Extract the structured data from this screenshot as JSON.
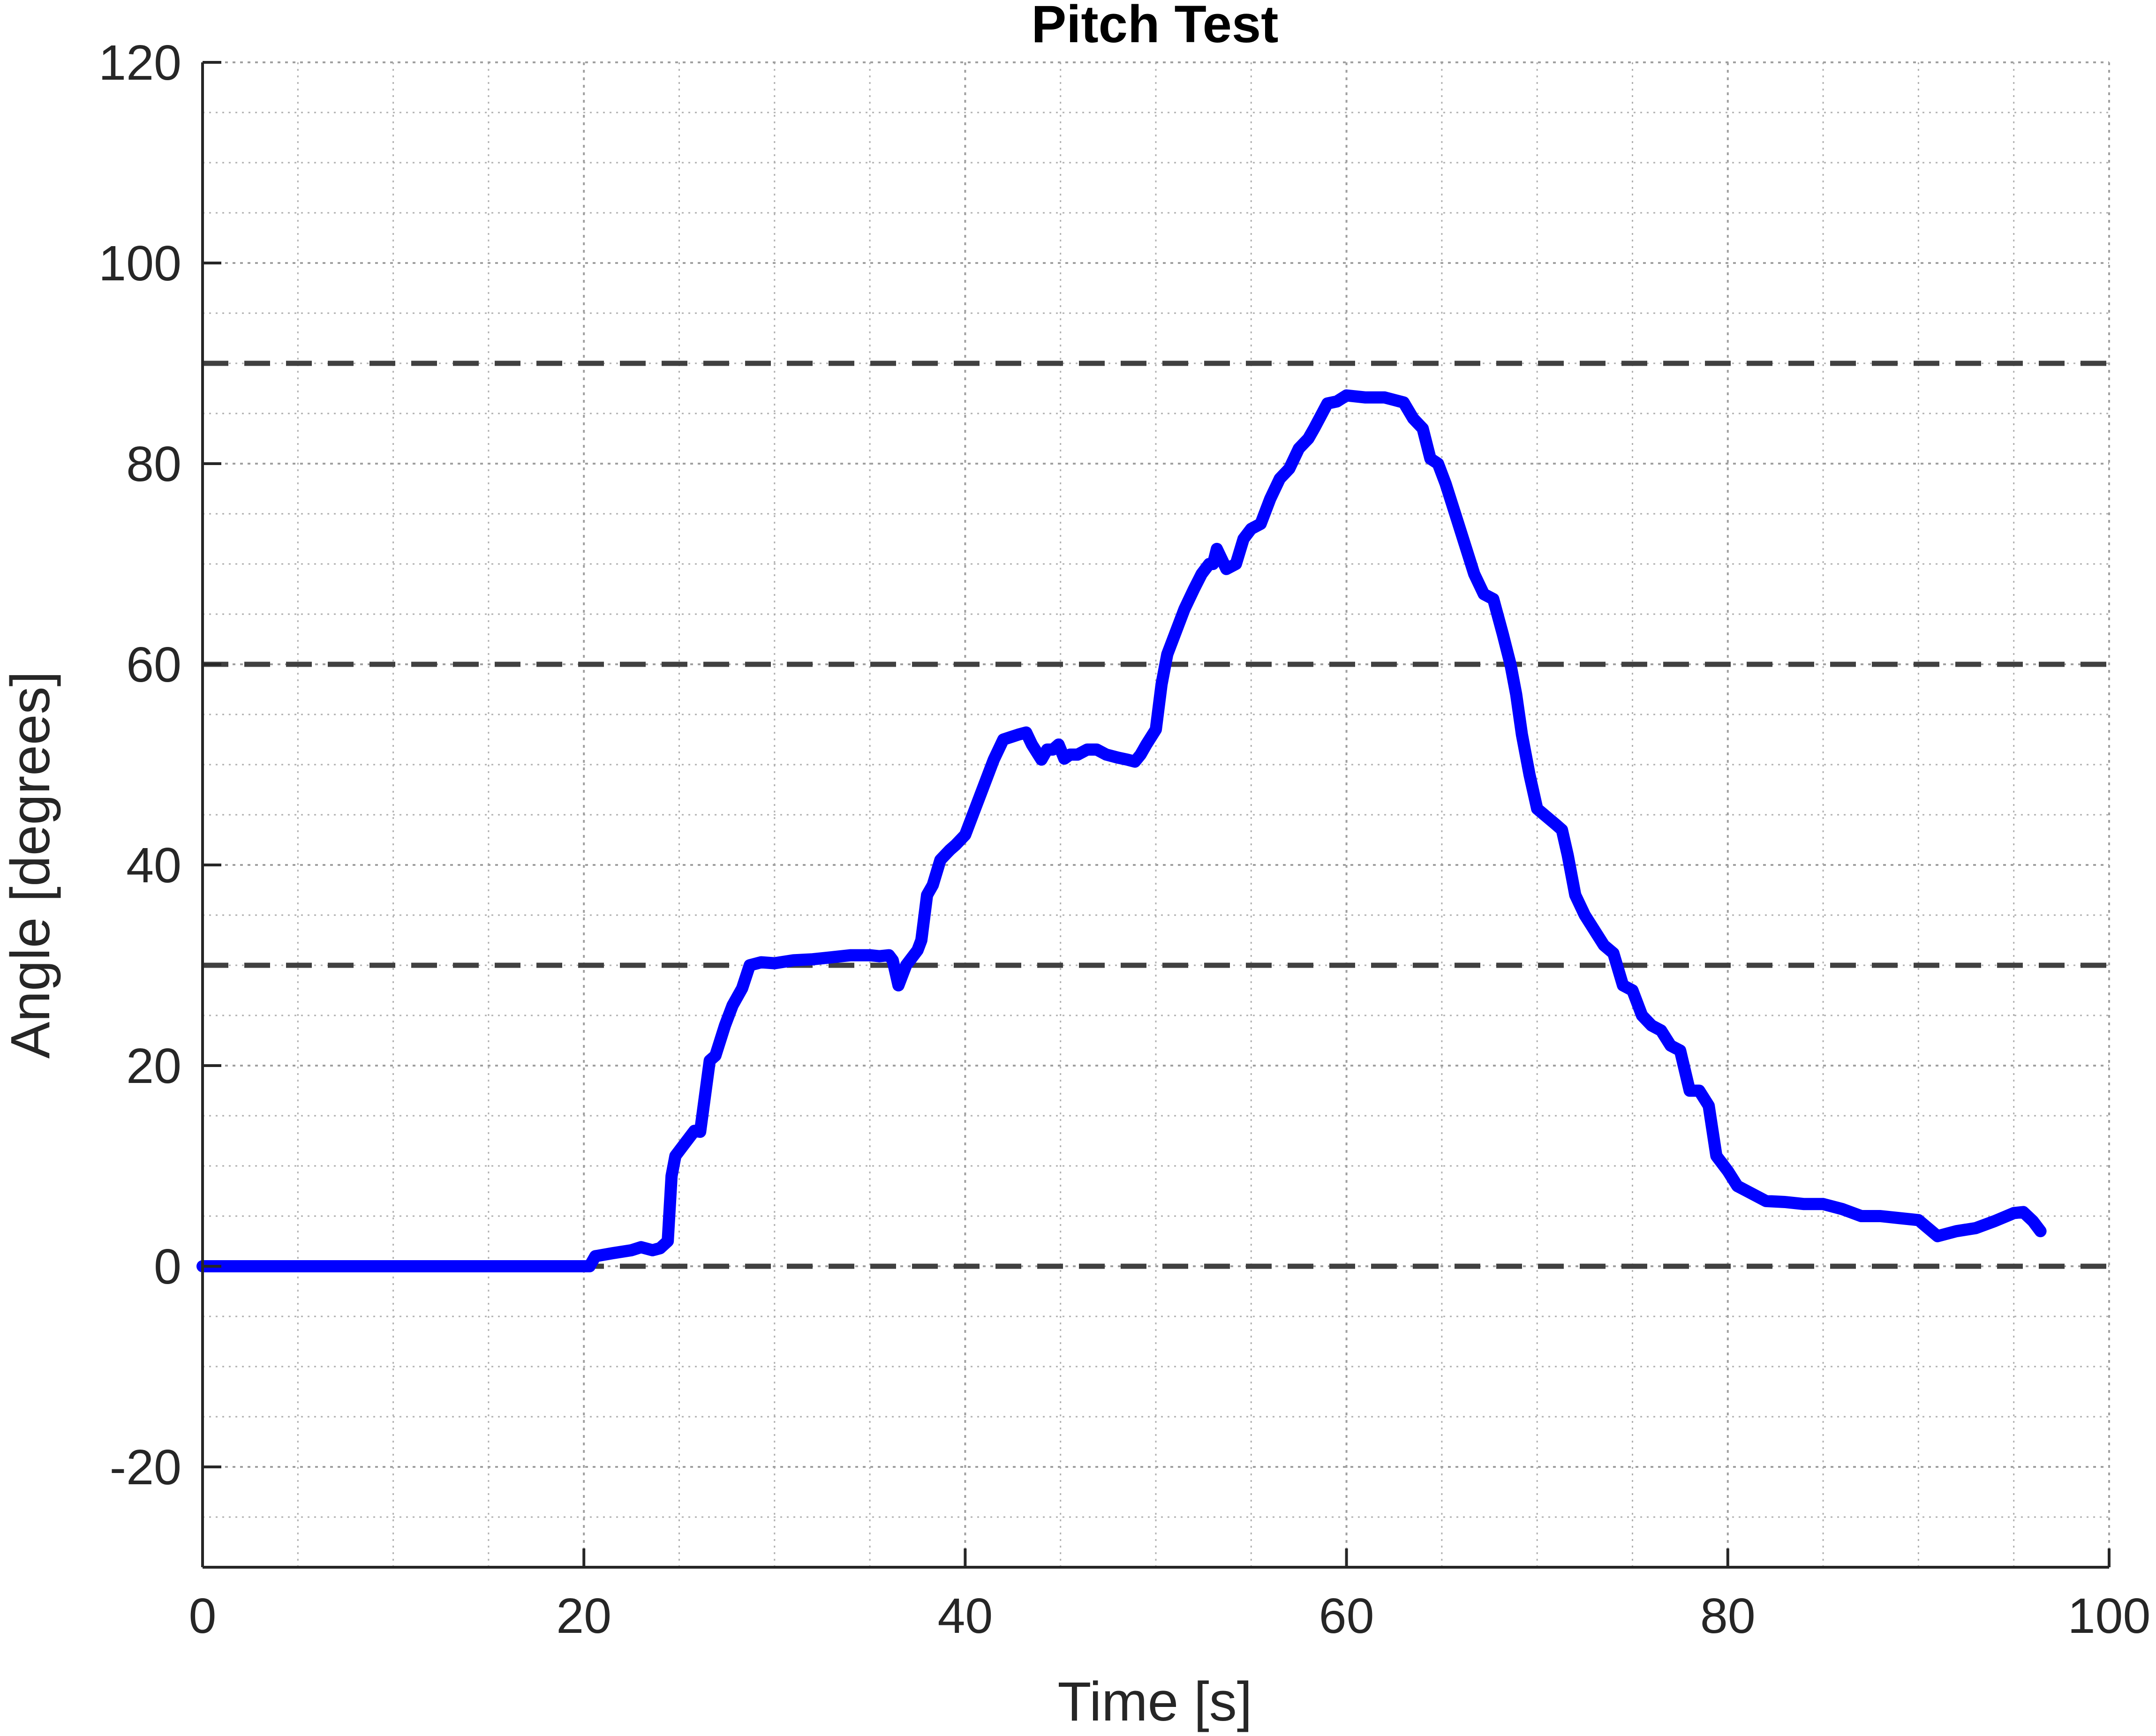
{
  "chart_data": {
    "type": "line",
    "title": "Pitch Test",
    "xlabel": "Time [s]",
    "ylabel": "Angle [degrees]",
    "xlim": [
      0,
      100
    ],
    "ylim": [
      -30,
      120
    ],
    "xticks": [
      0,
      20,
      40,
      60,
      80,
      100
    ],
    "xtick_labels": [
      "0",
      "20",
      "40",
      "60",
      "80",
      "100"
    ],
    "yticks": [
      -20,
      0,
      20,
      40,
      60,
      80,
      100,
      120
    ],
    "ytick_labels": [
      "-20",
      "0",
      "20",
      "40",
      "60",
      "80",
      "100",
      "120"
    ],
    "grid": true,
    "minor_grid": true,
    "reference_lines": [
      0,
      30,
      60,
      90
    ],
    "colors": {
      "series": "#0000ff",
      "reference": "#404040",
      "axis": "#262626",
      "grid": "#b0b0b0"
    },
    "series": [
      {
        "x": [
          0,
          20,
          20.3,
          20.6,
          21.5,
          22.5,
          23,
          23.6,
          24,
          24.4,
          24.6,
          24.8,
          25.2,
          25.8,
          26.1,
          26.6,
          26.9,
          27.4,
          27.8,
          28.3,
          28.7,
          29.3,
          30,
          31,
          32,
          33,
          34,
          35,
          35.5,
          36,
          36.2,
          36.5,
          36.9,
          37.5,
          37.7,
          38,
          38.3,
          38.7,
          39.2,
          39.5,
          40,
          40.5,
          40.8,
          41.5,
          42,
          42.8,
          43.2,
          43.5,
          44,
          44.3,
          44.6,
          44.9,
          45.2,
          45.5,
          45.9,
          46.4,
          46.9,
          47.4,
          48,
          48.5,
          48.9,
          49.2,
          49.5,
          50,
          50.3,
          50.6,
          51,
          51.5,
          52,
          52.4,
          52.8,
          53,
          53.2,
          53.7,
          54.2,
          54.6,
          55,
          55.5,
          56,
          56.5,
          57,
          57.5,
          58,
          58.3,
          59,
          59.5,
          60,
          61,
          62,
          62.6,
          63,
          63.5,
          64,
          64.4,
          64.8,
          65.2,
          65.7,
          66.2,
          66.7,
          67.2,
          67.7,
          68.2,
          68.6,
          68.9,
          69.2,
          69.6,
          70,
          71,
          71.3,
          71.6,
          72,
          72.5,
          73,
          73.5,
          74,
          74.5,
          75,
          75.5,
          76,
          76.5,
          77,
          77.5,
          78,
          78.5,
          79,
          79.4,
          80,
          80.5,
          81,
          82,
          83,
          84,
          85,
          86,
          87,
          88,
          89,
          90,
          91,
          92,
          93,
          94,
          95,
          95.5,
          96,
          96.4
        ],
        "y": [
          0,
          0,
          0,
          1,
          1.3,
          1.6,
          1.9,
          1.6,
          1.8,
          2.5,
          9,
          11,
          12,
          13.5,
          13.4,
          20.5,
          21,
          24,
          26,
          27.7,
          30,
          30.3,
          30.2,
          30.5,
          30.6,
          30.8,
          31,
          31,
          30.9,
          31,
          30.5,
          28,
          30,
          31.5,
          32.5,
          37,
          38,
          40.5,
          41.5,
          42,
          43,
          45.5,
          47,
          50.5,
          52.5,
          53,
          53.2,
          52,
          50.5,
          51.5,
          51.5,
          52,
          50.6,
          51,
          51,
          51.5,
          51.5,
          51,
          50.7,
          50.5,
          50.3,
          51,
          52,
          53.5,
          58,
          61,
          63,
          65.5,
          67.5,
          69,
          70,
          70,
          71.5,
          69.5,
          70,
          72.5,
          73.5,
          74,
          76.5,
          78.5,
          79.5,
          81.5,
          82.5,
          83.5,
          86,
          86.2,
          86.8,
          86.6,
          86.6,
          86.3,
          86.1,
          84.5,
          83.5,
          80.5,
          80,
          78,
          75,
          72,
          69,
          67,
          66.5,
          63,
          60,
          57,
          53,
          49,
          45.6,
          44,
          43.5,
          41,
          37,
          35,
          33.5,
          32,
          31.2,
          28,
          27.5,
          25,
          24,
          23.5,
          22,
          21.5,
          17.5,
          17.5,
          16,
          11,
          9.5,
          8,
          7.5,
          6.5,
          6.4,
          6.2,
          6.2,
          5.7,
          5,
          5,
          4.8,
          4.6,
          3,
          3.5,
          3.8,
          4.5,
          5.3,
          5.4,
          4.5,
          3.5
        ]
      }
    ]
  }
}
